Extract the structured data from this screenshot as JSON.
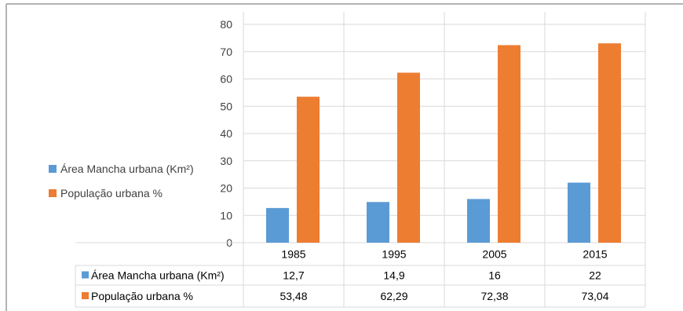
{
  "chart_data": {
    "type": "bar",
    "categories": [
      "1985",
      "1995",
      "2005",
      "2015"
    ],
    "series": [
      {
        "name": "Área Mancha urbana (Km²)",
        "values": [
          12.7,
          14.9,
          16,
          22
        ],
        "labels": [
          "12,7",
          "14,9",
          "16",
          "22"
        ],
        "color": "#5b9bd5"
      },
      {
        "name": "População urbana %",
        "values": [
          53.48,
          62.29,
          72.38,
          73.04
        ],
        "labels": [
          "53,48",
          "62,29",
          "72,38",
          "73,04"
        ],
        "color": "#ed7d31"
      }
    ],
    "yticks": [
      0,
      10,
      20,
      30,
      40,
      50,
      60,
      70,
      80
    ],
    "ylim": [
      0,
      80
    ],
    "grid": true,
    "legend": "left",
    "data_table": true
  },
  "legend": {
    "items": [
      {
        "label": "Área Mancha urbana (Km²)",
        "color": "#5b9bd5"
      },
      {
        "label": "População urbana %",
        "color": "#ed7d31"
      }
    ]
  }
}
